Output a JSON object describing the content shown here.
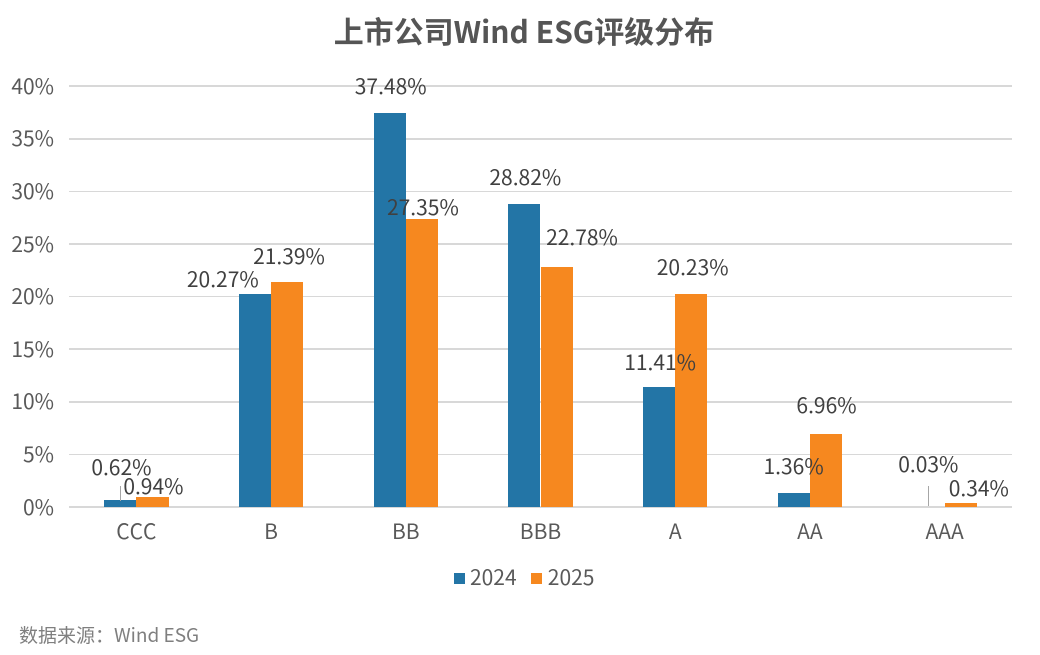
{
  "title": "上市公司Wind ESG评级分布",
  "source_note": "数据来源：Wind ESG",
  "colors": {
    "series_2024": "#2375A6",
    "series_2025": "#F6881F",
    "gridline": "#D8D8D8",
    "title_text": "#555555",
    "axis_text": "#595959",
    "data_label_text": "#404040",
    "source_text": "#7F7F7F",
    "leader_line": "#A6A6A6",
    "background": "#FFFFFF"
  },
  "chart_data": {
    "type": "bar",
    "title": "上市公司Wind ESG评级分布",
    "categories": [
      "CCC",
      "B",
      "BB",
      "BBB",
      "A",
      "AA",
      "AAA"
    ],
    "series": [
      {
        "name": "2024",
        "color": "#2375A6",
        "values": [
          0.62,
          20.27,
          37.48,
          28.82,
          11.41,
          1.36,
          0.03
        ],
        "data_labels": [
          "0.62%",
          "20.27%",
          "37.48%",
          "28.82%",
          "11.41%",
          "1.36%",
          "0.03%"
        ]
      },
      {
        "name": "2025",
        "color": "#F6881F",
        "values": [
          0.94,
          21.39,
          27.35,
          22.78,
          20.23,
          6.96,
          0.34
        ],
        "data_labels": [
          "0.94%",
          "21.39%",
          "27.35%",
          "22.78%",
          "20.23%",
          "6.96%",
          "0.34%"
        ]
      }
    ],
    "xlabel": "",
    "ylabel": "",
    "y_ticks": [
      "0%",
      "5%",
      "10%",
      "15%",
      "20%",
      "25%",
      "30%",
      "35%",
      "40%"
    ],
    "ylim": [
      0,
      40
    ],
    "grid": true,
    "legend_position": "bottom",
    "legend": [
      "2024",
      "2025"
    ]
  }
}
